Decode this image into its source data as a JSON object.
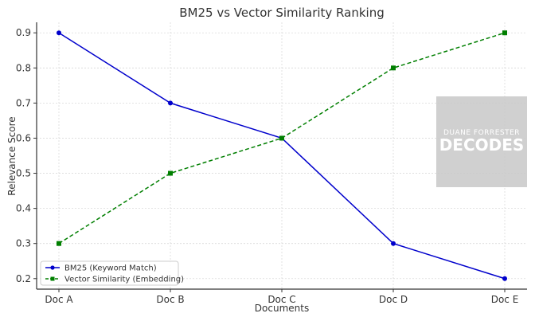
{
  "chart_data": {
    "type": "line",
    "title": "BM25 vs Vector Similarity Ranking",
    "xlabel": "Documents",
    "ylabel": "Relevance Score",
    "categories": [
      "Doc A",
      "Doc B",
      "Doc C",
      "Doc D",
      "Doc E"
    ],
    "ylim": [
      0.17,
      0.93
    ],
    "yticks": [
      "0.2",
      "0.3",
      "0.4",
      "0.5",
      "0.6",
      "0.7",
      "0.8",
      "0.9"
    ],
    "grid": true,
    "legend_position": "bottom-left",
    "series": [
      {
        "name": "BM25 (Keyword Match)",
        "values": [
          0.9,
          0.7,
          0.6,
          0.3,
          0.2
        ],
        "color": "#0000cc",
        "line_style": "solid",
        "marker": "circle"
      },
      {
        "name": "Vector Similarity (Embedding)",
        "values": [
          0.3,
          0.5,
          0.6,
          0.8,
          0.9
        ],
        "color": "#007f00",
        "line_style": "dashed",
        "marker": "square"
      }
    ]
  },
  "watermark": {
    "line1": "DUANE FORRESTER",
    "line2": "DECODES"
  }
}
